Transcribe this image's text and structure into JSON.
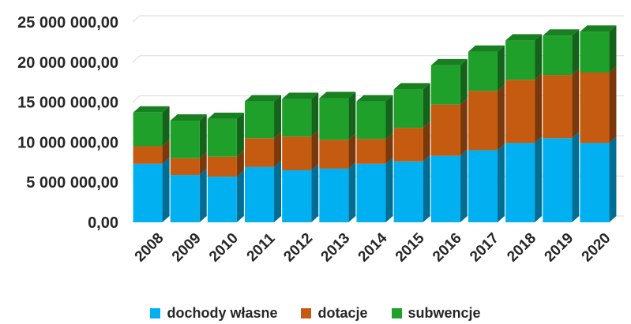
{
  "chart_data": {
    "type": "bar",
    "stacked": true,
    "style": "3d-column",
    "categories": [
      "2008",
      "2009",
      "2010",
      "2011",
      "2012",
      "2013",
      "2014",
      "2015",
      "2016",
      "2017",
      "2018",
      "2019",
      "2020"
    ],
    "series": [
      {
        "name": "dochody własne",
        "color": "#00B0F0",
        "values": [
          7300000,
          5900000,
          5700000,
          6900000,
          6500000,
          6700000,
          7300000,
          7600000,
          8300000,
          9000000,
          9900000,
          10500000,
          9900000
        ]
      },
      {
        "name": "dotacje",
        "color": "#C55A11",
        "values": [
          2200000,
          2100000,
          2500000,
          3600000,
          4200000,
          3600000,
          3100000,
          4200000,
          6400000,
          7400000,
          7900000,
          7900000,
          8800000
        ]
      },
      {
        "name": "subwencje",
        "color": "#1FA02A",
        "values": [
          4200000,
          4700000,
          4700000,
          4600000,
          4700000,
          5200000,
          4700000,
          4800000,
          4900000,
          4900000,
          4900000,
          4900000,
          5100000
        ]
      }
    ],
    "ylim": [
      0,
      25000000
    ],
    "yticks": [
      "0,00",
      "5 000 000,00",
      "10 000 000,00",
      "15 000 000,00",
      "20 000 000,00",
      "25 000 000,00"
    ],
    "grid": true,
    "legend": "bottom"
  }
}
